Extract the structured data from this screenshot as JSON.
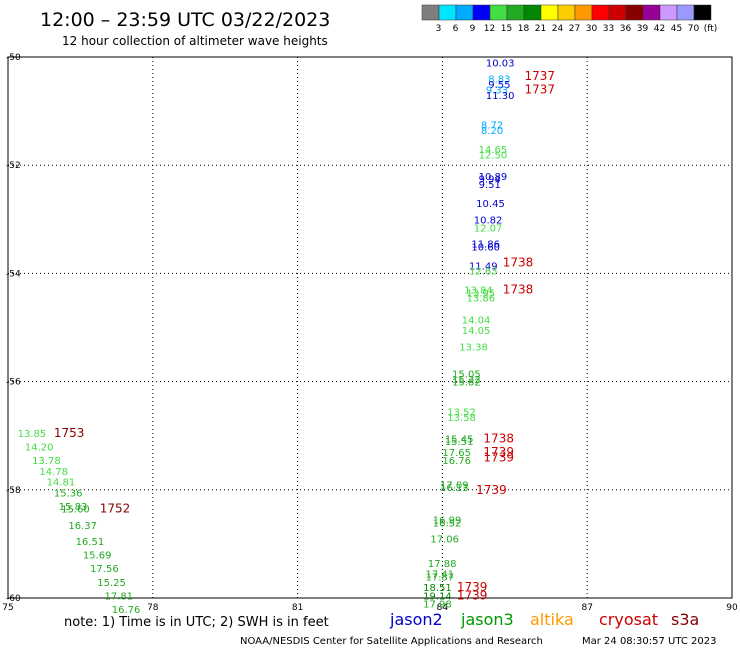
{
  "header": {
    "title": "12:00 – 23:59 UTC 03/22/2023",
    "subtitle": "12 hour collection of altimeter wave heights"
  },
  "colorbar": {
    "ticks": [
      "3",
      "6",
      "9",
      "12",
      "15",
      "18",
      "21",
      "24",
      "27",
      "30",
      "33",
      "36",
      "39",
      "42",
      "45",
      "70",
      "(ft)"
    ],
    "colors": [
      "#7f7f7f",
      "#00e5ff",
      "#00aaff",
      "#0000ff",
      "#44dd44",
      "#22aa22",
      "#008800",
      "#ffff00",
      "#ffcc00",
      "#ff9900",
      "#ff0000",
      "#cc0000",
      "#880000",
      "#990099",
      "#cc99ff",
      "#9999ff",
      "#000000"
    ]
  },
  "footer": {
    "note": "note: 1) Time is in UTC; 2) SWH is in feet",
    "satellites": [
      {
        "name": "jason2",
        "color": "#0000cc"
      },
      {
        "name": "jason3",
        "color": "#009900"
      },
      {
        "name": "altika",
        "color": "#ff9900"
      },
      {
        "name": "cryosat",
        "color": "#cc0000"
      },
      {
        "name": "s3a",
        "color": "#880000"
      }
    ],
    "credit": "NOAA/NESDIS Center for Satellite Applications and Research",
    "timestamp": "Mar 24 08:30:57 UTC 2023"
  },
  "chart_data": {
    "type": "scatter",
    "title": "12:00 – 23:59 UTC 03/22/2023",
    "subtitle": "12 hour collection of altimeter wave heights",
    "xlabel": "",
    "ylabel": "",
    "xlim": [
      75,
      90
    ],
    "ylim": [
      -60,
      -50
    ],
    "xticks": [
      75,
      78,
      81,
      84,
      87,
      90
    ],
    "yticks": [
      -50,
      -52,
      -54,
      -56,
      -58,
      -60
    ],
    "xtick_labels": [
      "75",
      "78",
      "81",
      "84",
      "87",
      "90"
    ],
    "ytick_labels": [
      "-50",
      "-52",
      "-54",
      "-56",
      "-58",
      "-60"
    ],
    "grid": true,
    "points": [
      {
        "x": 84.9,
        "y": -50.1,
        "v": "10.03",
        "color": "#0000cc"
      },
      {
        "x": 84.95,
        "y": -50.4,
        "v": "8.83",
        "color": "#00aaff"
      },
      {
        "x": 84.95,
        "y": -50.5,
        "v": "9.55",
        "color": "#0000cc"
      },
      {
        "x": 84.9,
        "y": -50.6,
        "v": "9.33",
        "color": "#00aaff"
      },
      {
        "x": 84.9,
        "y": -50.7,
        "v": "11.30",
        "color": "#0000cc"
      },
      {
        "x": 84.8,
        "y": -51.25,
        "v": "8.72",
        "color": "#00aaff"
      },
      {
        "x": 84.8,
        "y": -51.35,
        "v": "8.20",
        "color": "#00aaff"
      },
      {
        "x": 84.75,
        "y": -51.7,
        "v": "14.65",
        "color": "#44dd44"
      },
      {
        "x": 84.75,
        "y": -51.8,
        "v": "12.50",
        "color": "#44dd44"
      },
      {
        "x": 84.75,
        "y": -52.2,
        "v": "10.89",
        "color": "#0000cc"
      },
      {
        "x": 84.75,
        "y": -52.25,
        "v": "9.94",
        "color": "#0000cc"
      },
      {
        "x": 84.75,
        "y": -52.35,
        "v": "9.51",
        "color": "#0000cc"
      },
      {
        "x": 84.7,
        "y": -52.7,
        "v": "10.45",
        "color": "#0000cc"
      },
      {
        "x": 84.65,
        "y": -53.0,
        "v": "10.82",
        "color": "#0000cc"
      },
      {
        "x": 84.65,
        "y": -53.15,
        "v": "12.07",
        "color": "#44dd44"
      },
      {
        "x": 84.6,
        "y": -53.45,
        "v": "11.86",
        "color": "#0000cc"
      },
      {
        "x": 84.6,
        "y": -53.5,
        "v": "10.60",
        "color": "#0000cc"
      },
      {
        "x": 84.55,
        "y": -53.85,
        "v": "11.49",
        "color": "#0000cc"
      },
      {
        "x": 84.55,
        "y": -53.95,
        "v": "12.63",
        "color": "#44dd44"
      },
      {
        "x": 84.45,
        "y": -54.3,
        "v": "13.84",
        "color": "#44dd44"
      },
      {
        "x": 84.5,
        "y": -54.35,
        "v": "13.95",
        "color": "#44dd44"
      },
      {
        "x": 84.5,
        "y": -54.45,
        "v": "13.86",
        "color": "#44dd44"
      },
      {
        "x": 84.4,
        "y": -54.85,
        "v": "14.04",
        "color": "#44dd44"
      },
      {
        "x": 84.4,
        "y": -55.05,
        "v": "14.05",
        "color": "#44dd44"
      },
      {
        "x": 84.35,
        "y": -55.35,
        "v": "13.38",
        "color": "#44dd44"
      },
      {
        "x": 84.2,
        "y": -55.85,
        "v": "15.05",
        "color": "#22aa22"
      },
      {
        "x": 84.2,
        "y": -55.95,
        "v": "15.22",
        "color": "#22aa22"
      },
      {
        "x": 84.2,
        "y": -56.0,
        "v": "15.82",
        "color": "#22aa22"
      },
      {
        "x": 84.1,
        "y": -56.55,
        "v": "13.52",
        "color": "#44dd44"
      },
      {
        "x": 84.1,
        "y": -56.65,
        "v": "13.58",
        "color": "#44dd44"
      },
      {
        "x": 84.05,
        "y": -57.05,
        "v": "15.45",
        "color": "#22aa22"
      },
      {
        "x": 84.05,
        "y": -57.1,
        "v": "15.51",
        "color": "#22aa22"
      },
      {
        "x": 84.0,
        "y": -57.3,
        "v": "17.65",
        "color": "#22aa22"
      },
      {
        "x": 84.0,
        "y": -57.45,
        "v": "16.76",
        "color": "#22aa22"
      },
      {
        "x": 83.95,
        "y": -57.9,
        "v": "17.09",
        "color": "#22aa22"
      },
      {
        "x": 83.95,
        "y": -57.95,
        "v": "16.13",
        "color": "#22aa22"
      },
      {
        "x": 83.8,
        "y": -58.55,
        "v": "16.99",
        "color": "#22aa22"
      },
      {
        "x": 83.8,
        "y": -58.6,
        "v": "16.52",
        "color": "#22aa22"
      },
      {
        "x": 83.75,
        "y": -58.9,
        "v": "17.06",
        "color": "#22aa22"
      },
      {
        "x": 83.7,
        "y": -59.35,
        "v": "17.88",
        "color": "#22aa22"
      },
      {
        "x": 83.65,
        "y": -59.55,
        "v": "17.41",
        "color": "#22aa22"
      },
      {
        "x": 83.65,
        "y": -59.6,
        "v": "17.87",
        "color": "#22aa22"
      },
      {
        "x": 83.6,
        "y": -59.8,
        "v": "18.51",
        "color": "#008800"
      },
      {
        "x": 83.6,
        "y": -59.95,
        "v": "19.14",
        "color": "#008800"
      },
      {
        "x": 83.6,
        "y": -60.1,
        "v": "17.98",
        "color": "#22aa22"
      },
      {
        "x": 75.2,
        "y": -56.95,
        "v": "13.85",
        "color": "#44dd44"
      },
      {
        "x": 75.35,
        "y": -57.2,
        "v": "14.20",
        "color": "#44dd44"
      },
      {
        "x": 75.5,
        "y": -57.45,
        "v": "13.78",
        "color": "#44dd44"
      },
      {
        "x": 75.65,
        "y": -57.65,
        "v": "14.78",
        "color": "#44dd44"
      },
      {
        "x": 75.8,
        "y": -57.85,
        "v": "14.81",
        "color": "#44dd44"
      },
      {
        "x": 75.95,
        "y": -58.05,
        "v": "15.36",
        "color": "#22aa22"
      },
      {
        "x": 76.05,
        "y": -58.3,
        "v": "15.83",
        "color": "#22aa22"
      },
      {
        "x": 76.1,
        "y": -58.35,
        "v": "15.60",
        "color": "#22aa22"
      },
      {
        "x": 76.25,
        "y": -58.65,
        "v": "16.37",
        "color": "#22aa22"
      },
      {
        "x": 76.4,
        "y": -58.95,
        "v": "16.51",
        "color": "#22aa22"
      },
      {
        "x": 76.55,
        "y": -59.2,
        "v": "15.69",
        "color": "#22aa22"
      },
      {
        "x": 76.7,
        "y": -59.45,
        "v": "17.56",
        "color": "#22aa22"
      },
      {
        "x": 76.85,
        "y": -59.7,
        "v": "15.25",
        "color": "#22aa22"
      },
      {
        "x": 77.0,
        "y": -59.95,
        "v": "17.81",
        "color": "#22aa22"
      },
      {
        "x": 77.15,
        "y": -60.2,
        "v": "16.76",
        "color": "#22aa22"
      }
    ],
    "time_labels": [
      {
        "x": 85.7,
        "y": -50.35,
        "t": "1737",
        "color": "#cc0000"
      },
      {
        "x": 85.7,
        "y": -50.6,
        "t": "1737",
        "color": "#cc0000"
      },
      {
        "x": 85.25,
        "y": -53.8,
        "t": "1738",
        "color": "#cc0000"
      },
      {
        "x": 85.25,
        "y": -54.3,
        "t": "1738",
        "color": "#cc0000"
      },
      {
        "x": 75.95,
        "y": -56.95,
        "t": "1753",
        "color": "#880000"
      },
      {
        "x": 76.9,
        "y": -58.35,
        "t": "1752",
        "color": "#880000"
      },
      {
        "x": 84.85,
        "y": -57.05,
        "t": "1738",
        "color": "#cc0000"
      },
      {
        "x": 84.85,
        "y": -57.3,
        "t": "1739",
        "color": "#cc0000"
      },
      {
        "x": 84.85,
        "y": -57.4,
        "t": "1739",
        "color": "#cc0000"
      },
      {
        "x": 84.7,
        "y": -58.0,
        "t": "1739",
        "color": "#cc0000"
      },
      {
        "x": 84.3,
        "y": -59.8,
        "t": "1739",
        "color": "#cc0000"
      },
      {
        "x": 84.3,
        "y": -59.95,
        "t": "1739",
        "color": "#cc0000"
      }
    ]
  }
}
